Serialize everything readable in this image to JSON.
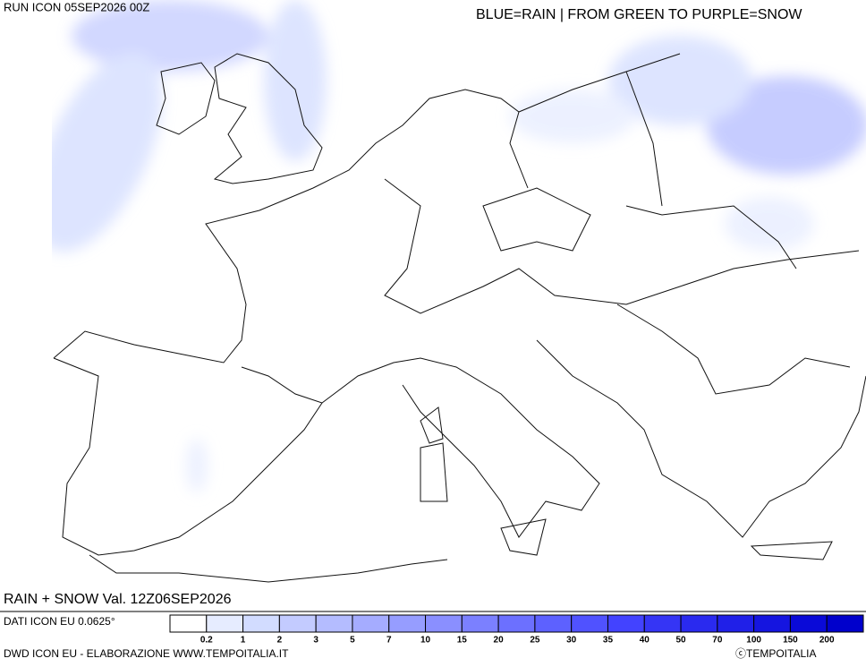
{
  "header": {
    "run": "RUN ICON 05SEP2026 00Z",
    "legend_note": "BLUE=RAIN | FROM GREEN TO PURPLE=SNOW"
  },
  "map": {
    "title": "RAIN + SNOW Val. 12Z06SEP2026"
  },
  "footer": {
    "source": "DATI ICON EU 0.0625°",
    "credit": "DWD ICON EU - ELABORAZIONE WWW.TEMPOITALIA.IT",
    "copyright": "ⓒTEMPOITALIA"
  },
  "colorbar": {
    "labels": [
      "0.2",
      "1",
      "2",
      "3",
      "5",
      "7",
      "10",
      "15",
      "20",
      "25",
      "30",
      "35",
      "40",
      "50",
      "70",
      "100",
      "150",
      "200"
    ],
    "colors": [
      "#ffffff",
      "#e6ecff",
      "#d2dcff",
      "#c3cbff",
      "#b4bcff",
      "#a5acff",
      "#969dff",
      "#8a8fff",
      "#7b80ff",
      "#6c70ff",
      "#5d61ff",
      "#5052ff",
      "#4343ff",
      "#3535f5",
      "#2a2aef",
      "#2020e8",
      "#1515e0",
      "#0a0ad8",
      "#0000cc"
    ]
  }
}
